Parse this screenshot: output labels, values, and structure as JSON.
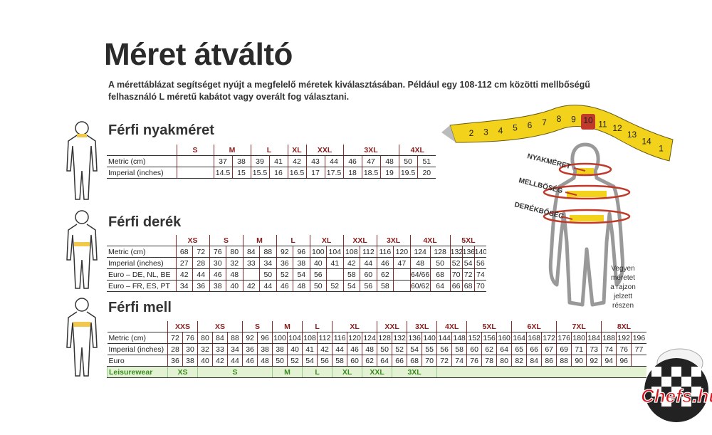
{
  "title": "Méret átváltó",
  "intro": "A mérettáblázat segítséget nyújt a megfelelő méretek kiválasztásában. Például egy 108-112 cm közötti mellbőségű felhasználó L méretű kabátot vagy overált fog választani.",
  "tape": {
    "numbers": [
      "2",
      "3",
      "4",
      "5",
      "6",
      "7",
      "8",
      "9",
      "10",
      "11",
      "12",
      "13",
      "14",
      "1"
    ]
  },
  "body": {
    "labels": [
      "NYAKMÉRET",
      "MELLBÖSÉG",
      "DERÉKBŐSÉG"
    ],
    "note": [
      "Vegyen",
      "méretet",
      "a rajzon",
      "jelzett",
      "részen"
    ]
  },
  "tables": [
    {
      "title": "Férfi nyakméret",
      "sizes": [
        "S",
        "M",
        "L",
        "XL",
        "XXL",
        "3XL",
        "4XL"
      ],
      "rows": [
        {
          "label": "Metric (cm)",
          "cells": [
            null,
            "37",
            "38",
            "39",
            "41",
            "42",
            "43",
            "44",
            "46",
            "47",
            "48",
            "50",
            "51"
          ]
        },
        {
          "label": "Imperial (inches)",
          "cells": [
            null,
            "14.5",
            "15",
            "15.5",
            "16",
            "16.5",
            "17",
            "17.5",
            "18",
            "18.5",
            "19",
            "19.5",
            "20"
          ]
        }
      ]
    },
    {
      "title": "Férfi derék",
      "sizes": [
        "XS",
        "S",
        "M",
        "L",
        "XL",
        "XXL",
        "3XL",
        "4XL",
        "5XL"
      ],
      "rows": [
        {
          "label": "Metric (cm)",
          "cells": [
            "68",
            "72",
            "76",
            "80",
            "84",
            "88",
            "92",
            "96",
            "100",
            "104",
            "108",
            "112",
            "116",
            "120",
            "124",
            "128",
            "132",
            "136",
            "140"
          ]
        },
        {
          "label": "Imperial (inches)",
          "cells": [
            "27",
            "28",
            "30",
            "32",
            "33",
            "34",
            "36",
            "38",
            "40",
            "41",
            "42",
            "44",
            "46",
            "47",
            "48",
            "50",
            "52",
            "54",
            "56"
          ]
        },
        {
          "label": "Euro – DE, NL, BE",
          "cells": [
            "42",
            "44",
            "46",
            "48",
            null,
            "50",
            "52",
            "54",
            "56",
            null,
            "58",
            "60",
            "62",
            null,
            "64/66",
            "68",
            "70",
            "72",
            "74"
          ]
        },
        {
          "label": "Euro – FR, ES, PT",
          "cells": [
            "34",
            "36",
            "38",
            "40",
            "42",
            "44",
            "46",
            "48",
            "50",
            "52",
            "54",
            "56",
            "58",
            null,
            "60/62",
            "64",
            "66",
            "68",
            "70"
          ]
        }
      ]
    },
    {
      "title": "Férfi mell",
      "sizes": [
        "XXS",
        "XS",
        "S",
        "M",
        "L",
        "XL",
        "XXL",
        "3XL",
        "4XL",
        "5XL",
        "6XL",
        "7XL",
        "8XL"
      ],
      "rows": [
        {
          "label": "Metric (cm)",
          "cells": [
            "72",
            "76",
            "80",
            "84",
            "88",
            "92",
            "96",
            "100",
            "104",
            "108",
            "112",
            "116",
            "120",
            "124",
            "128",
            "132",
            "136",
            "140",
            "144",
            "148",
            "152",
            "156",
            "160",
            "164",
            "168",
            "172",
            "176",
            "180",
            "184",
            "188",
            "192",
            "196"
          ]
        },
        {
          "label": "Imperial (inches)",
          "cells": [
            "28",
            "30",
            "32",
            "33",
            "34",
            "36",
            "38",
            "38",
            "40",
            "41",
            "42",
            "44",
            "46",
            "48",
            "50",
            "52",
            "54",
            "55",
            "56",
            "58",
            "60",
            "62",
            "64",
            "65",
            "66",
            "67",
            "69",
            "71",
            "73",
            "74",
            "76",
            "77"
          ]
        },
        {
          "label": "Euro",
          "cells": [
            "36",
            "38",
            "40",
            "42",
            "44",
            "46",
            "48",
            "50",
            "52",
            "54",
            "56",
            "58",
            "60",
            "62",
            "64",
            "66",
            "68",
            "70",
            "72",
            "74",
            "76",
            "78",
            "80",
            "82",
            "84",
            "86",
            "88",
            "90",
            "92",
            "94",
            "96",
            null
          ]
        }
      ],
      "leisure": {
        "label": "Leisurewear",
        "sizes": [
          "XS",
          "S",
          "M",
          "L",
          "XL",
          "XXL",
          "3XL"
        ]
      }
    }
  ],
  "logo": "Chefs.hu"
}
